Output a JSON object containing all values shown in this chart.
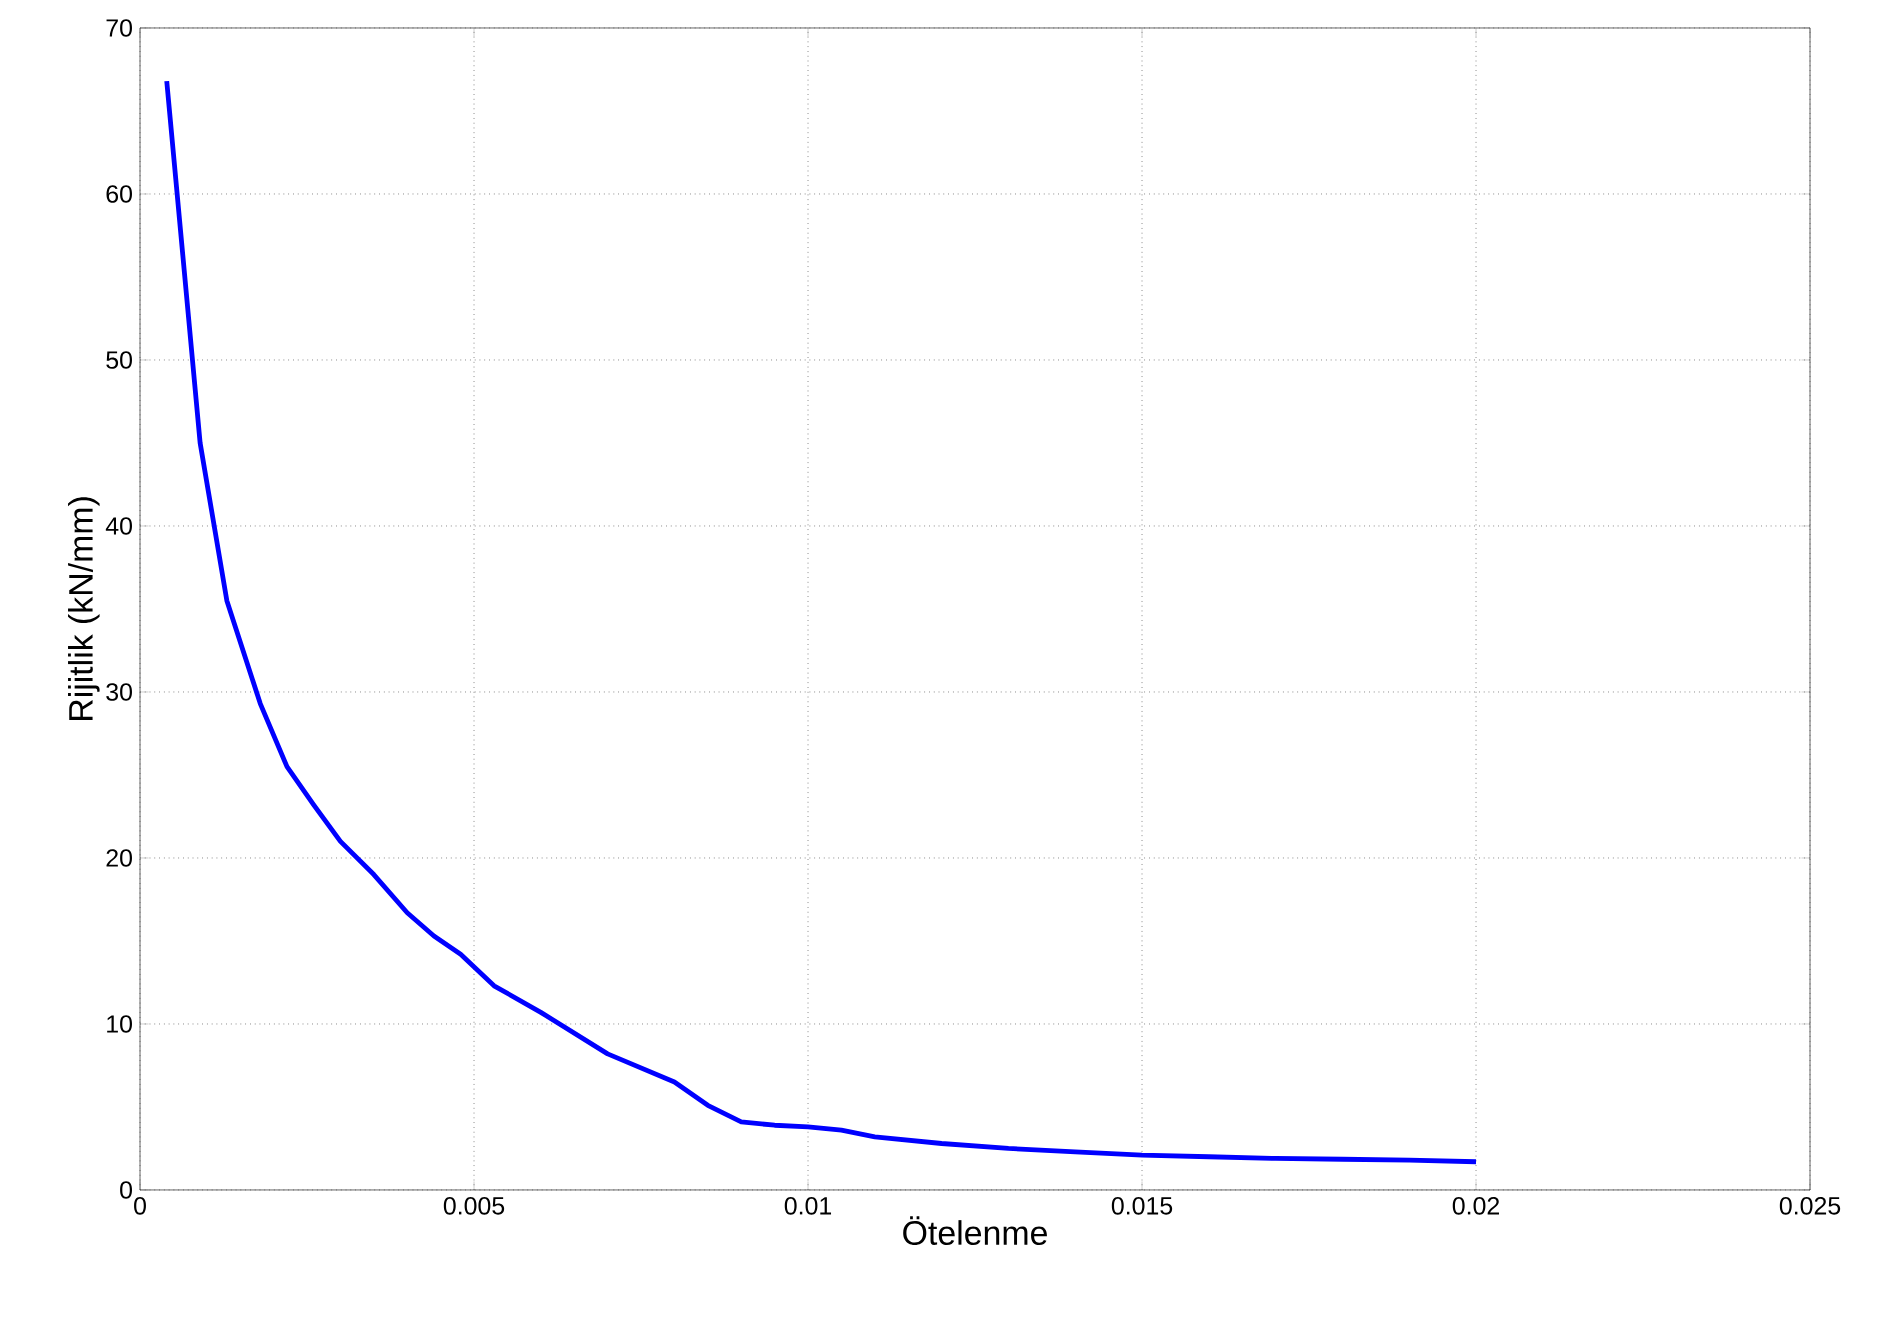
{
  "chart_data": {
    "type": "line",
    "xlabel": "Ötelenme",
    "ylabel": "Rijitlik (kN/mm)",
    "x": [
      0.0004,
      0.0009,
      0.0013,
      0.0018,
      0.0022,
      0.0026,
      0.003,
      0.0035,
      0.004,
      0.0044,
      0.0048,
      0.0053,
      0.006,
      0.007,
      0.008,
      0.0085,
      0.009,
      0.0095,
      0.01,
      0.0105,
      0.011,
      0.012,
      0.013,
      0.014,
      0.015,
      0.016,
      0.017,
      0.018,
      0.019,
      0.02
    ],
    "series": [
      {
        "color": "#0000ff",
        "values": [
          66.8,
          45,
          35.5,
          29.3,
          25.5,
          23.2,
          21,
          19,
          16.7,
          15.3,
          14.2,
          12.3,
          10.7,
          8.2,
          6.5,
          5.1,
          4.1,
          3.9,
          3.8,
          3.6,
          3.2,
          2.8,
          2.5,
          2.3,
          2.1,
          2.0,
          1.9,
          1.85,
          1.8,
          1.7
        ]
      }
    ],
    "xlim": [
      0,
      0.025
    ],
    "ylim": [
      0,
      70
    ],
    "xticks": [
      0,
      0.005,
      0.01,
      0.015,
      0.02,
      0.025
    ],
    "yticks": [
      0,
      10,
      20,
      30,
      40,
      50,
      60,
      70
    ],
    "grid": true,
    "marker": "none",
    "line_style": "solid"
  }
}
